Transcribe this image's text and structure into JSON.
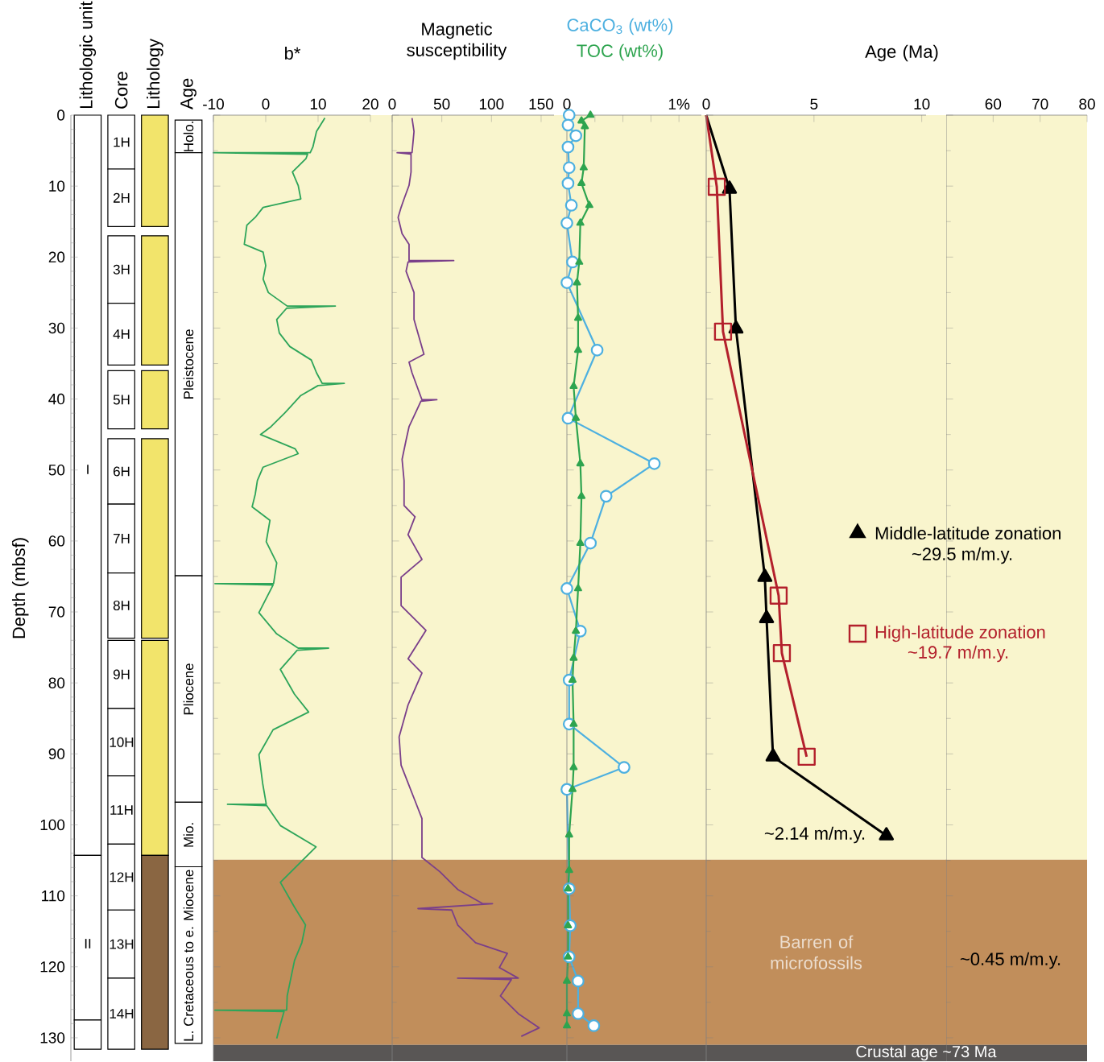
{
  "chart_data": [
    {
      "type": "bar",
      "ylabel": "Depth (mbsf)",
      "categories": [
        "Lithologic unit",
        "Core",
        "Lithology",
        "Age"
      ],
      "ylim": [
        133.3,
        0
      ],
      "yticks": [
        0,
        10,
        20,
        30,
        40,
        50,
        60,
        70,
        80,
        90,
        100,
        110,
        120,
        130
      ],
      "series": [
        {
          "values": [
            104.3,
            7.6,
            15.7,
            4.6
          ],
          "base": [
            0,
            0,
            0,
            0.7
          ],
          "colors": [
            "#ffffff",
            "#ffffff",
            "#f2e46b",
            "#ffffff"
          ]
        },
        {
          "values": [
            23.2,
            8.1,
            18.2,
            59.6
          ],
          "base": [
            104.3,
            7.6,
            17,
            5.3
          ],
          "colors": [
            "#ffffff",
            "#ffffff",
            "#f2e46b",
            "#ffffff"
          ]
        },
        {
          "values": [
            4.1,
            9.5,
            8.2,
            31.9
          ],
          "base": [
            127.5,
            17,
            36,
            64.9
          ],
          "colors": [
            "#ffffff",
            "#ffffff",
            "#f2e46b",
            "#ffffff"
          ]
        },
        {
          "values": [
            null,
            8.7,
            28.1,
            9.1
          ],
          "base": [
            null,
            26.5,
            45.6,
            96.8
          ],
          "colors": [
            null,
            "#ffffff",
            "#f2e46b",
            "#ffffff"
          ]
        },
        {
          "values": [
            null,
            8.2,
            30.3,
            24.9
          ],
          "base": [
            null,
            36,
            74,
            105.9
          ],
          "colors": [
            null,
            "#ffffff",
            "#f2e46b",
            "#ffffff"
          ]
        },
        {
          "values": [
            null,
            9.2,
            27.3,
            null
          ],
          "base": [
            null,
            45.6,
            104.3,
            null
          ],
          "colors": [
            null,
            "#ffffff",
            "#8a6642",
            null
          ]
        },
        {
          "values": [
            null,
            9.7,
            null,
            null
          ],
          "base": [
            null,
            54.8,
            null,
            null
          ],
          "colors": [
            null,
            "#ffffff",
            null,
            null
          ]
        },
        {
          "values": [
            null,
            9.2,
            null,
            null
          ],
          "base": [
            null,
            64.5,
            null,
            null
          ],
          "colors": [
            null,
            "#ffffff",
            null,
            null
          ]
        },
        {
          "values": [
            null,
            9.6,
            null,
            null
          ],
          "base": [
            null,
            74,
            null,
            null
          ],
          "colors": [
            null,
            "#ffffff",
            null,
            null
          ]
        },
        {
          "values": [
            null,
            9.5,
            null,
            null
          ],
          "base": [
            null,
            83.6,
            null,
            null
          ],
          "colors": [
            null,
            "#ffffff",
            null,
            null
          ]
        },
        {
          "values": [
            null,
            9.6,
            null,
            null
          ],
          "base": [
            null,
            93.1,
            null,
            null
          ],
          "colors": [
            null,
            "#ffffff",
            null,
            null
          ]
        },
        {
          "values": [
            null,
            9.3,
            null,
            null
          ],
          "base": [
            null,
            102.7,
            null,
            null
          ],
          "colors": [
            null,
            "#ffffff",
            null,
            null
          ]
        },
        {
          "values": [
            null,
            9.6,
            null,
            null
          ],
          "base": [
            null,
            112,
            null,
            null
          ],
          "colors": [
            null,
            "#ffffff",
            null,
            null
          ]
        },
        {
          "values": [
            null,
            10.0,
            null,
            null
          ],
          "base": [
            null,
            121.6,
            null,
            null
          ],
          "colors": [
            null,
            "#ffffff",
            null,
            null
          ]
        }
      ],
      "annotations": [
        "I",
        "II",
        "1H",
        "2H",
        "3H",
        "4H",
        "5H",
        "6H",
        "7H",
        "8H",
        "9H",
        "10H",
        "11H",
        "12H",
        "13H",
        "14H",
        "Holo.",
        "Pleistocene",
        "Pliocene",
        "Mio.",
        "L. Cretaceous to e. Miocene"
      ]
    },
    {
      "type": "line",
      "orientation": "horizontal",
      "xlabel": "b*",
      "xlim": [
        -10,
        20
      ],
      "xticks": [
        -10,
        0,
        10,
        20
      ],
      "ylim": [
        133.3,
        0
      ],
      "yticks": [
        0,
        10,
        20,
        30,
        40,
        50,
        60,
        70,
        80,
        90,
        100,
        110,
        120,
        130
      ],
      "tick_labels": "x",
      "bands": [
        {
          "axis": "y",
          "from": 0,
          "to": 104.9,
          "color": "#f9f5cd"
        },
        {
          "axis": "y",
          "from": 104.9,
          "to": 131,
          "color": "#c18e5b"
        },
        {
          "axis": "y",
          "from": 131,
          "to": 133.3,
          "color": "#595655"
        }
      ],
      "series": [
        {
          "color": "#2ea55a",
          "x": [
            0.4,
            2.3,
            4.5,
            5.3,
            5.3,
            5.5,
            6.1,
            8,
            9.9,
            11.8,
            13,
            14.4,
            15.5,
            18.2,
            19.3,
            21.2,
            23.1,
            25,
            26.9,
            26.9,
            27.2,
            28.8,
            30.7,
            32.6,
            34.5,
            36.3,
            37.8,
            37.8,
            38.1,
            39.5,
            42,
            43.9,
            45,
            47,
            47.7,
            49.6,
            51.5,
            53.4,
            55.2,
            57.1,
            60.1,
            63.1,
            66,
            66,
            66.2,
            70.1,
            73.1,
            75.1,
            75.1,
            75.4,
            78.1,
            81.6,
            84.1,
            86.6,
            90.1,
            94.1,
            97.1,
            97.1,
            97.3,
            100.1,
            103.1,
            105.1,
            108.1,
            111.6,
            114.1,
            116.6,
            119.1,
            121.6,
            124.1,
            126.1,
            126.1,
            126.3,
            128.1,
            130.1
          ],
          "values": [
            11.3,
            9.7,
            9,
            8.5,
            -10,
            8,
            7.7,
            5.1,
            6.2,
            6.7,
            -0.5,
            -2,
            -3.6,
            -4.1,
            -0.5,
            0,
            -0.5,
            0.5,
            4.1,
            13.3,
            4,
            2.1,
            2.6,
            4.6,
            8.7,
            9.7,
            10.8,
            15,
            10,
            6.7,
            3.6,
            1,
            -1,
            5.6,
            6.2,
            -0.5,
            -1.6,
            -2,
            -2.6,
            0.8,
            0.1,
            2.1,
            1.5,
            -9.7,
            1.4,
            -1.3,
            2.1,
            6.2,
            12,
            6,
            2.8,
            5.5,
            8.2,
            1.4,
            -1.3,
            -0.6,
            0.1,
            -7.3,
            0.2,
            2.8,
            9.6,
            6.9,
            2.8,
            5.5,
            7.6,
            6.9,
            5.5,
            4.8,
            4.1,
            4,
            -9.7,
            3.5,
            2.8,
            2.1
          ]
        }
      ]
    },
    {
      "type": "line",
      "orientation": "horizontal",
      "xlabel": "Magnetic susceptibility",
      "xlim": [
        0,
        163
      ],
      "xticks": [
        0,
        50,
        100,
        150
      ],
      "ylim": [
        133.3,
        0
      ],
      "yticks": [
        0,
        10,
        20,
        30,
        40,
        50,
        60,
        70,
        80,
        90,
        100,
        110,
        120,
        130
      ],
      "tick_labels": "x",
      "bands": [
        {
          "axis": "y",
          "from": 0,
          "to": 104.9,
          "color": "#f9f5cd"
        },
        {
          "axis": "y",
          "from": 104.9,
          "to": 131,
          "color": "#c18e5b"
        },
        {
          "axis": "y",
          "from": 131,
          "to": 133.3,
          "color": "#595655"
        }
      ],
      "series": [
        {
          "color": "#7a3f8a",
          "x": [
            0.4,
            2.3,
            5.3,
            5.3,
            5.5,
            8,
            9.9,
            11.8,
            13,
            14.4,
            16.7,
            18.2,
            20.5,
            20.5,
            20.7,
            22,
            25,
            28.8,
            33.7,
            34.8,
            36.3,
            40.1,
            40.1,
            40.3,
            43.9,
            45.8,
            48.5,
            51.5,
            55,
            56.6,
            59.1,
            62.6,
            65.1,
            69.1,
            72.6,
            76.6,
            78.6,
            83.1,
            87.6,
            91.6,
            96.6,
            99.1,
            104.6,
            106.6,
            109.1,
            111.1,
            111.1,
            111.8,
            112,
            114.1,
            116.6,
            118.1,
            120.1,
            121.6,
            121.6,
            121.8,
            124.1,
            126.6,
            128.6,
            129.8
          ],
          "values": [
            20,
            22,
            20,
            5,
            19,
            19,
            17,
            12,
            9,
            6,
            10,
            17,
            17,
            62,
            16,
            14,
            22,
            22,
            32,
            17,
            20,
            30,
            45,
            29,
            17,
            14,
            10,
            12,
            12,
            23,
            16,
            30,
            9,
            9,
            34,
            16,
            30,
            16,
            7,
            9,
            23,
            30,
            30,
            48,
            66,
            91,
            101,
            26,
            60,
            66,
            84,
            116,
            108,
            127,
            66,
            120,
            109,
            127,
            148,
            130
          ]
        }
      ]
    },
    {
      "type": "line",
      "orientation": "horizontal",
      "legend": "top",
      "xlim": [
        0,
        1.2
      ],
      "xticks": [
        0,
        {
          "value": 0.25,
          "label": null
        },
        {
          "value": 0.5,
          "label": null
        },
        {
          "value": 0.75,
          "label": null
        },
        {
          "value": 1,
          "label": "1%"
        }
      ],
      "ylim": [
        133.3,
        0
      ],
      "yticks": [
        0,
        10,
        20,
        30,
        40,
        50,
        60,
        70,
        80,
        90,
        100,
        110,
        120,
        130
      ],
      "tick_labels": "x",
      "bands": [
        {
          "axis": "y",
          "from": 0,
          "to": 104.9,
          "color": "#f9f5cd"
        },
        {
          "axis": "y",
          "from": 104.9,
          "to": 131,
          "color": "#c18e5b"
        },
        {
          "axis": "y",
          "from": 131,
          "to": 133.3,
          "color": "#595655"
        }
      ],
      "series": [
        {
          "name": "CaCO$_{3}$ (wt%)",
          "color": "#4db0e0",
          "marker": "circle",
          "x": [
            0,
            1.4,
            2.9,
            4.5,
            7.4,
            9.6,
            12.7,
            15.2,
            20.7,
            23.6,
            33.1,
            42.7,
            49.1,
            53.7,
            60.3,
            66.7,
            72.7,
            79.6,
            85.8,
            91.9,
            95,
            109,
            114.2,
            118.6,
            122,
            126.6,
            128.3
          ],
          "values": [
            0.02,
            0.01,
            0.08,
            0.01,
            0.02,
            0.01,
            0.04,
            0,
            0.05,
            0,
            0.27,
            0.01,
            0.78,
            0.35,
            0.21,
            0,
            0.12,
            0.02,
            0.02,
            0.51,
            0,
            0.02,
            0.03,
            0.02,
            0.1,
            0.1,
            0.24
          ]
        },
        {
          "name": "TOC (wt%)",
          "color": "#2ea44f",
          "marker": "triangle",
          "x": [
            0,
            0.8,
            1.6,
            7.4,
            9.6,
            12.7,
            15.2,
            20.7,
            23.6,
            28.6,
            33.1,
            38.2,
            42.7,
            49.1,
            53.7,
            60.3,
            66.7,
            72.7,
            76.5,
            79.6,
            85.8,
            91.9,
            95,
            101.4,
            106.4,
            109,
            114.2,
            118.6,
            122,
            126.6,
            128.3
          ],
          "values": [
            0.21,
            0.13,
            0.16,
            0.15,
            0.13,
            0.2,
            0.12,
            0.11,
            0.09,
            0.1,
            0.1,
            0.06,
            0.08,
            0.12,
            0.13,
            0.12,
            0.1,
            0.08,
            0.06,
            0.05,
            0.06,
            0.06,
            0.05,
            0.02,
            0.02,
            0.01,
            0.01,
            0.01,
            0,
            0,
            0
          ]
        }
      ]
    },
    {
      "type": "line",
      "orientation": "horizontal",
      "legend": "right",
      "xlabel": "Age (Ma)",
      "xlim": [
        0,
        10.2
      ],
      "xticks": [
        0,
        5,
        10
      ],
      "ylim": [
        133.3,
        0
      ],
      "yticks": [
        0,
        10,
        20,
        30,
        40,
        50,
        60,
        70,
        80,
        90,
        100,
        110,
        120,
        130
      ],
      "tick_labels": "x",
      "bands": [
        {
          "axis": "y",
          "from": 0,
          "to": 104.9,
          "color": "#f9f5cd"
        },
        {
          "axis": "y",
          "from": 104.9,
          "to": 131,
          "color": "#c18e5b",
          "label": "Barren of microfossils"
        },
        {
          "axis": "y",
          "from": 131,
          "to": 133.3,
          "color": "#595655",
          "label": "Crustal age ~73 Ma"
        }
      ],
      "annotations": [
        "~29.5 m/m.y.",
        "~19.7 m/m.y.",
        "~2.14 m/m.y."
      ],
      "series": [
        {
          "name": "Middle-latitude zonation",
          "color": "#000000",
          "marker": "triangle",
          "x": [
            0,
            10.4,
            30.1,
            65.1,
            70.9,
            90.4,
            101.5
          ],
          "values": [
            0,
            1.08,
            1.38,
            2.72,
            2.8,
            3.1,
            8.36
          ]
        },
        {
          "name": "High-latitude zonation",
          "color": "#b3202c",
          "marker": "square",
          "x": [
            0,
            10.1,
            30.5,
            67.7,
            75.8,
            90.4
          ],
          "values": [
            0,
            0.49,
            0.78,
            3.36,
            3.51,
            4.66
          ]
        }
      ]
    },
    {
      "type": "line",
      "xlim": [
        50,
        80
      ],
      "xticks": [
        60,
        70,
        80
      ],
      "ylim": [
        133.3,
        0
      ],
      "yticks": [
        0,
        10,
        20,
        30,
        40,
        50,
        60,
        70,
        80,
        90,
        100,
        110,
        120,
        130
      ],
      "tick_labels": "x",
      "bands": [
        {
          "axis": "y",
          "from": 0,
          "to": 104.9,
          "color": "#f9f5cd"
        },
        {
          "axis": "y",
          "from": 104.9,
          "to": 131,
          "color": "#c18e5b"
        },
        {
          "axis": "y",
          "from": 131,
          "to": 133.3,
          "color": "#595655"
        }
      ],
      "annotations": [
        "~0.45 m/m.y."
      ]
    }
  ]
}
